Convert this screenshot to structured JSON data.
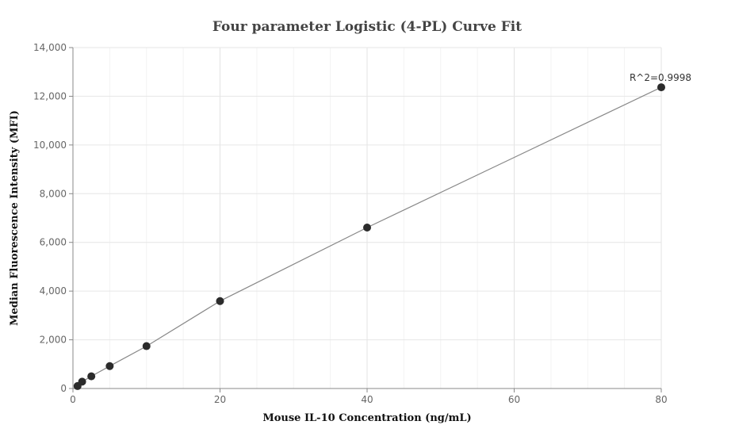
{
  "chart_data": {
    "type": "scatter",
    "title": "Four parameter Logistic (4-PL) Curve Fit",
    "xlabel": "Mouse IL-10 Concentration (ng/mL)",
    "ylabel": "Median Fluorescence Intensity (MFI)",
    "xlim": [
      0,
      80
    ],
    "ylim": [
      0,
      14000
    ],
    "x_ticks": [
      0,
      20,
      40,
      60,
      80
    ],
    "x_tick_labels": [
      "0",
      "20",
      "40",
      "60",
      "80"
    ],
    "y_ticks": [
      0,
      2000,
      4000,
      6000,
      8000,
      10000,
      12000,
      14000
    ],
    "y_tick_labels": [
      "0",
      "2,000",
      "4,000",
      "6,000",
      "8,000",
      "10,000",
      "12,000",
      "14,000"
    ],
    "grid": true,
    "series": [
      {
        "x": [
          0.625,
          1.25,
          2.5,
          5,
          10,
          20,
          40,
          80
        ],
        "y": [
          100,
          280,
          500,
          920,
          1740,
          3590,
          6610,
          12370
        ],
        "color": "#2b2b2b"
      }
    ],
    "fit_line": {
      "x": [
        0.625,
        1.25,
        2.5,
        5,
        10,
        20,
        40,
        80
      ],
      "y": [
        100,
        280,
        500,
        920,
        1740,
        3590,
        6610,
        12370
      ],
      "color": "#888888"
    },
    "annotations": [
      {
        "text": "R^2=0.9998",
        "x": 80,
        "y": 12370
      }
    ]
  }
}
